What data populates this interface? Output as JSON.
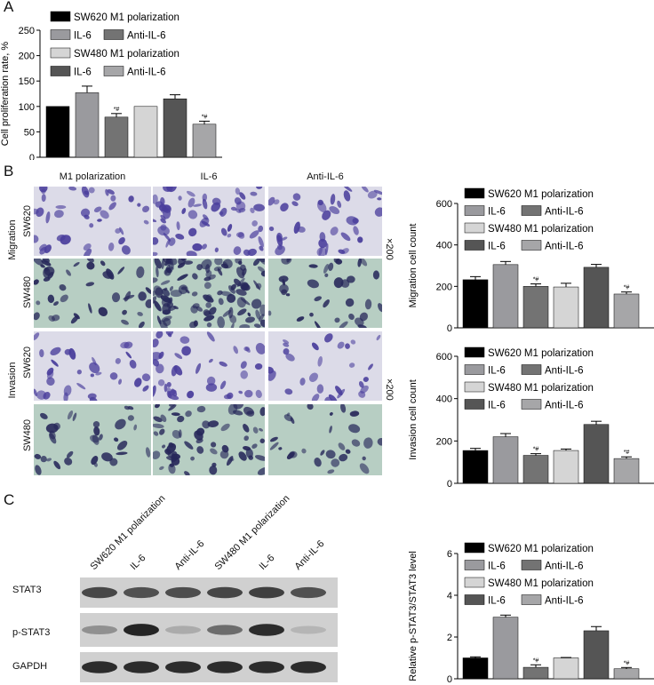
{
  "panels": {
    "a": "A",
    "b": "B",
    "c": "C"
  },
  "colors": {
    "sw620_m1": "#000000",
    "sw620_il6": "#9a9a9e",
    "sw620_anti": "#737373",
    "sw480_m1": "#d5d5d5",
    "sw480_il6": "#555555",
    "sw480_anti": "#a6a6a8",
    "crystal_violet": "#4a3e9c",
    "stain_bg_purple": "#dcdbe8",
    "stain_bg_teal": "#b7cec3",
    "dark_blue": "#27285a"
  },
  "legend": {
    "sw620_m1": "SW620 M1 polarization",
    "il6": "IL-6",
    "anti_il6": "Anti-IL-6",
    "sw480_m1": "SW480 M1 polarization"
  },
  "micro": {
    "col_heads": [
      "M1 polarization",
      "IL-6",
      "Anti-IL-6"
    ],
    "row_sw620a": "SW620",
    "row_sw480a": "SW480",
    "row_sw620b": "SW620",
    "row_sw480b": "SW480",
    "group_migration": "Migration",
    "group_invasion": "Invasion",
    "mag1": "×200",
    "mag2": "×200"
  },
  "blot": {
    "lanes": [
      "SW620 M1 polarization",
      "IL-6",
      "Anti-IL-6",
      "SW480 M1 polarization",
      "IL-6",
      "Anti-IL-6"
    ],
    "rows": [
      "STAT3",
      "p-STAT3",
      "GAPDH"
    ],
    "intensity": {
      "stat3": [
        0.75,
        0.7,
        0.72,
        0.76,
        0.8,
        0.7
      ],
      "pstat3": [
        0.35,
        0.95,
        0.2,
        0.55,
        0.9,
        0.15
      ],
      "gapdh": [
        0.9,
        0.9,
        0.9,
        0.9,
        0.9,
        0.9
      ]
    }
  },
  "chart_data": [
    {
      "id": "proliferation",
      "type": "bar",
      "ylabel": "Cell proliferation rate, %",
      "ylim": [
        0,
        250
      ],
      "yticks": [
        0,
        50,
        100,
        150,
        200,
        250
      ],
      "series": [
        {
          "name": "SW620 M1 polarization",
          "value": 100,
          "err": 0
        },
        {
          "name": "IL-6",
          "value": 127,
          "err": 13
        },
        {
          "name": "Anti-IL-6",
          "value": 79,
          "err": 7,
          "sig": "*#"
        },
        {
          "name": "SW480 M1 polarization",
          "value": 100,
          "err": 0
        },
        {
          "name": "IL-6",
          "value": 115,
          "err": 8
        },
        {
          "name": "Anti-IL-6",
          "value": 65,
          "err": 6,
          "sig": "*#"
        }
      ]
    },
    {
      "id": "migration",
      "type": "bar",
      "ylabel": "Migration cell count",
      "ylim": [
        0,
        600
      ],
      "yticks": [
        0,
        200,
        400,
        600
      ],
      "series": [
        {
          "name": "SW620 M1 polarization",
          "value": 232,
          "err": 15
        },
        {
          "name": "IL-6",
          "value": 305,
          "err": 15
        },
        {
          "name": "Anti-IL-6",
          "value": 200,
          "err": 12,
          "sig": "*#"
        },
        {
          "name": "SW480 M1 polarization",
          "value": 197,
          "err": 18
        },
        {
          "name": "IL-6",
          "value": 292,
          "err": 14
        },
        {
          "name": "Anti-IL-6",
          "value": 163,
          "err": 10,
          "sig": "*#"
        }
      ]
    },
    {
      "id": "invasion",
      "type": "bar",
      "ylabel": "Invasion cell count",
      "ylim": [
        0,
        600
      ],
      "yticks": [
        0,
        200,
        400,
        600
      ],
      "series": [
        {
          "name": "SW620 M1 polarization",
          "value": 155,
          "err": 10
        },
        {
          "name": "IL-6",
          "value": 220,
          "err": 15
        },
        {
          "name": "Anti-IL-6",
          "value": 132,
          "err": 8,
          "sig": "*#"
        },
        {
          "name": "SW480 M1 polarization",
          "value": 155,
          "err": 7
        },
        {
          "name": "IL-6",
          "value": 278,
          "err": 15
        },
        {
          "name": "Anti-IL-6",
          "value": 117,
          "err": 8,
          "sig": "*#"
        }
      ]
    },
    {
      "id": "pstat3",
      "type": "bar",
      "ylabel": "Relative p-STAT3/STAT3 level",
      "ylim": [
        0,
        6
      ],
      "yticks": [
        0,
        2,
        4,
        6
      ],
      "series": [
        {
          "name": "SW620 M1 polarization",
          "value": 1.0,
          "err": 0.05
        },
        {
          "name": "IL-6",
          "value": 2.95,
          "err": 0.1
        },
        {
          "name": "Anti-IL-6",
          "value": 0.55,
          "err": 0.12,
          "sig": "*#"
        },
        {
          "name": "SW480 M1 polarization",
          "value": 1.0,
          "err": 0.02
        },
        {
          "name": "IL-6",
          "value": 2.3,
          "err": 0.2
        },
        {
          "name": "Anti-IL-6",
          "value": 0.48,
          "err": 0.06,
          "sig": "*#"
        }
      ]
    }
  ]
}
